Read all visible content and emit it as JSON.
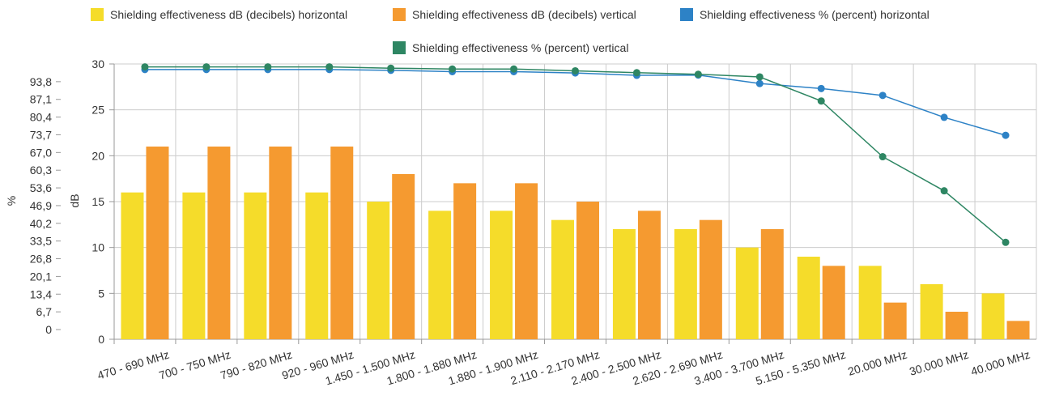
{
  "chart_data": {
    "type": "bar",
    "categories": [
      "470 - 690 MHz",
      "700 - 750 MHz",
      "790 - 820 MHz",
      "920 - 960 MHz",
      "1.450 - 1.500 MHz",
      "1.800 - 1.880 MHz",
      "1.880 - 1.900 MHz",
      "2.110 - 2.170 MHz",
      "2.400 - 2.500 MHz",
      "2.620 - 2.690 MHz",
      "3.400 - 3.700 MHz",
      "5.150 - 5.350 MHz",
      "20.000 MHz",
      "30.000 MHz",
      "40.000 MHz"
    ],
    "series": [
      {
        "name": "Shielding effectiveness dB (decibels) horizontal",
        "type": "bar",
        "axis": "dB",
        "color": "#f5dc2a",
        "values": [
          16,
          16,
          16,
          16,
          15,
          14,
          14,
          13,
          12,
          12,
          10,
          9,
          8,
          6,
          5
        ]
      },
      {
        "name": "Shielding effectiveness dB (decibels) vertical",
        "type": "bar",
        "axis": "dB",
        "color": "#f59a30",
        "values": [
          21,
          21,
          21,
          21,
          18,
          17,
          17,
          15,
          14,
          13,
          12,
          8,
          4,
          3,
          2
        ]
      },
      {
        "name": "Shielding effectiveness % (percent) horizontal",
        "type": "line",
        "axis": "%",
        "color": "#2d82c6",
        "values": [
          98.4,
          98.4,
          98.4,
          98.4,
          98.1,
          97.6,
          97.6,
          97.1,
          96.2,
          96.3,
          93.1,
          91.2,
          88.6,
          80.3,
          73.5
        ]
      },
      {
        "name": "Shielding effectiveness % (percent) vertical",
        "type": "line",
        "axis": "%",
        "color": "#2e8663",
        "values": [
          99.4,
          99.4,
          99.4,
          99.4,
          98.9,
          98.6,
          98.6,
          97.9,
          97.2,
          96.6,
          95.6,
          86.5,
          65.4,
          52.5,
          33.0
        ]
      }
    ],
    "y_left_outer": {
      "label": "%",
      "ticks": [
        "0",
        "6,7",
        "13,4",
        "20,1",
        "26,8",
        "33,5",
        "40,2",
        "46,9",
        "53,6",
        "60,3",
        "67,0",
        "73,7",
        "80,4",
        "87,1",
        "93,8"
      ],
      "range": [
        0,
        100.5
      ]
    },
    "y_left_inner": {
      "label": "dB",
      "ticks": [
        "0",
        "5",
        "10",
        "15",
        "20",
        "25",
        "30"
      ],
      "range": [
        0,
        30
      ]
    },
    "grid": true,
    "legend_position": "top"
  }
}
